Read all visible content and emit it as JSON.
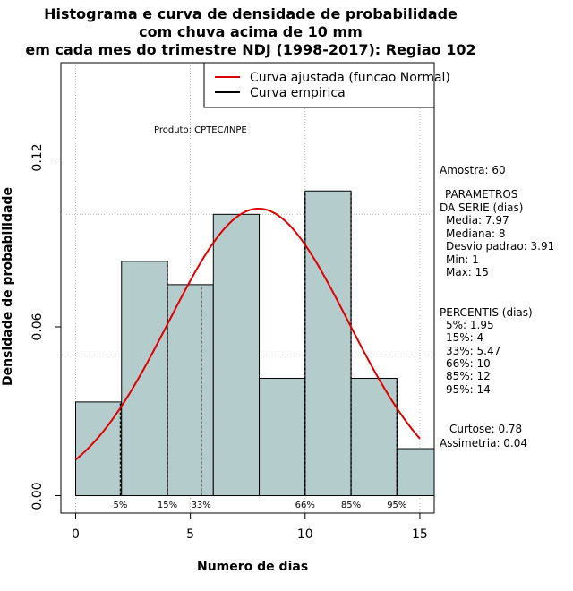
{
  "chart_data": {
    "type": "histogram",
    "title_lines": [
      "Histograma e curva de densidade de probabilidade",
      "com chuva acima de 10 mm",
      "em cada mes do trimestre NDJ (1998-2017): Regiao 102"
    ],
    "xlabel": "Numero de dias",
    "ylabel": "Densidade de probabilidade",
    "xlim": [
      0,
      15
    ],
    "ylim": [
      0,
      0.15
    ],
    "xticks": [
      "0",
      "5",
      "10",
      "15"
    ],
    "xtick_values": [
      0,
      5,
      10,
      15
    ],
    "yticks": [
      "0.00",
      "0.06",
      "0.12"
    ],
    "ytick_values": [
      0,
      0.06,
      0.12
    ],
    "bins": [
      {
        "from": 0,
        "to": 2,
        "density": 0.0333
      },
      {
        "from": 2,
        "to": 4,
        "density": 0.0833
      },
      {
        "from": 4,
        "to": 6,
        "density": 0.075
      },
      {
        "from": 6,
        "to": 8,
        "density": 0.1
      },
      {
        "from": 8,
        "to": 10,
        "density": 0.0417
      },
      {
        "from": 10,
        "to": 12,
        "density": 0.1083
      },
      {
        "from": 12,
        "to": 14,
        "density": 0.0417
      },
      {
        "from": 14,
        "to": 16,
        "density": 0.0167
      }
    ],
    "normal_fit": {
      "mean": 7.97,
      "sd": 3.91,
      "x_range": [
        0,
        15
      ]
    },
    "percentile_marks": [
      {
        "label": "5%",
        "x": 1.95
      },
      {
        "label": "15%",
        "x": 4
      },
      {
        "label": "33%",
        "x": 5.47
      },
      {
        "label": "66%",
        "x": 10
      },
      {
        "label": "85%",
        "x": 12
      },
      {
        "label": "95%",
        "x": 14
      }
    ],
    "legend": {
      "placement": "top-right",
      "entries": [
        {
          "label": "Curva ajustada (funcao Normal)",
          "color": "#dd0000"
        },
        {
          "label": "Curva empirica",
          "color": "#000000"
        }
      ]
    },
    "grid": true,
    "bar_color": "#b5cccc",
    "product_note": "Produto: CPTEC/INPE"
  },
  "stats": {
    "amostra": "Amostra: 60",
    "parametros_title_1": "PARAMETROS",
    "parametros_title_2": "DA SERIE (dias)",
    "media": "Media: 7.97",
    "mediana": "Mediana: 8",
    "desvio": "Desvio padrao: 3.91",
    "min": "Min: 1",
    "max": "Max: 15",
    "percentis_title": "PERCENTIS (dias)",
    "p5": "5%: 1.95",
    "p15": "15%: 4",
    "p33": "33%: 5.47",
    "p66": "66%: 10",
    "p85": "85%: 12",
    "p95": "95%: 14",
    "curtose": "Curtose: 0.78",
    "assimetria": "Assimetria: 0.04"
  }
}
